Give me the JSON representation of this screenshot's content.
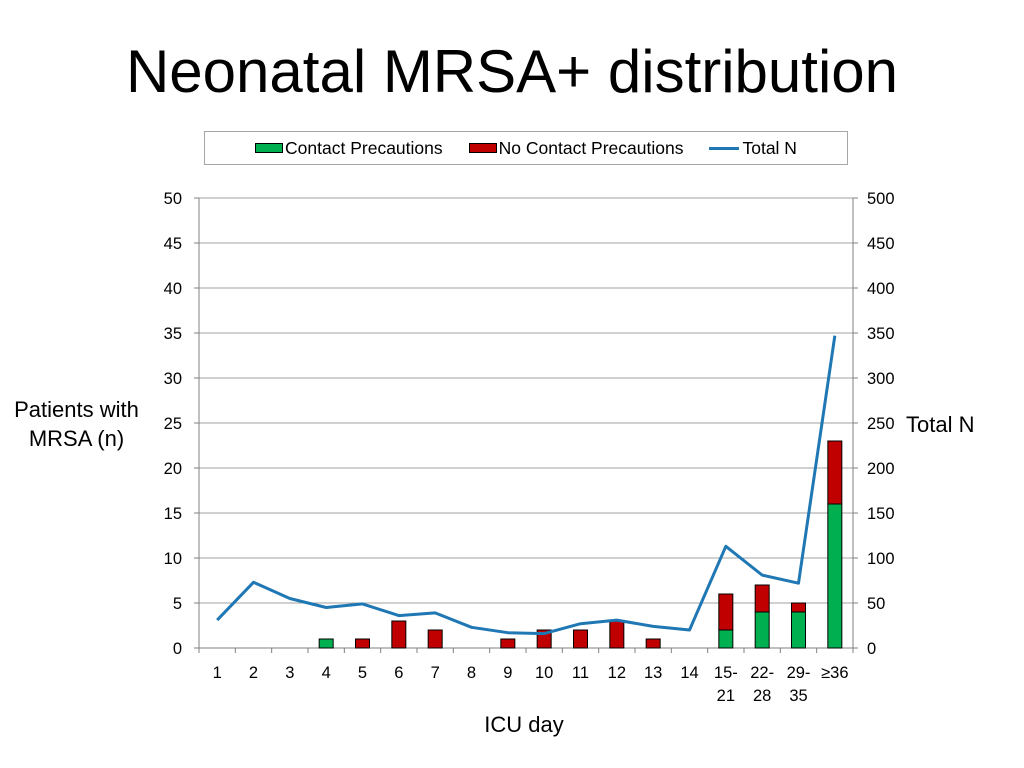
{
  "title": "Neonatal MRSA+ distribution",
  "colors": {
    "contact": "#00b050",
    "no_contact": "#c00000",
    "total": "#1f77b4"
  },
  "chart_data": {
    "type": "bar",
    "categories": [
      "1",
      "2",
      "3",
      "4",
      "5",
      "6",
      "7",
      "8",
      "9",
      "10",
      "11",
      "12",
      "13",
      "14",
      "15-21",
      "22-28",
      "29-35",
      "≥36"
    ],
    "series": [
      {
        "name": "Contact Precautions",
        "type": "bar",
        "stacked": true,
        "axis": "left",
        "values": [
          0,
          0,
          0,
          1,
          0,
          0,
          0,
          0,
          0,
          0,
          0,
          0,
          0,
          0,
          2,
          4,
          4,
          16
        ]
      },
      {
        "name": "No Contact Precautions",
        "type": "bar",
        "stacked": true,
        "axis": "left",
        "values": [
          0,
          0,
          0,
          0,
          1,
          3,
          2,
          0,
          1,
          2,
          2,
          3,
          1,
          0,
          4,
          3,
          1,
          7
        ]
      },
      {
        "name": "Total N",
        "type": "line",
        "axis": "right",
        "values": [
          31,
          73,
          55,
          45,
          49,
          36,
          39,
          23,
          17,
          16,
          27,
          31,
          24,
          20,
          113,
          81,
          72,
          347
        ]
      }
    ],
    "xlabel": "ICU day",
    "ylabel": "Patients with MRSA (n)",
    "ylabel_lines": [
      "Patients with",
      "MRSA (n)"
    ],
    "y2label": "Total N",
    "ylim": [
      0,
      50
    ],
    "y2lim": [
      0,
      500
    ],
    "yticks": [
      "0",
      "5",
      "10",
      "15",
      "20",
      "25",
      "30",
      "35",
      "40",
      "45",
      "50"
    ],
    "y2ticks": [
      "0",
      "50",
      "100",
      "150",
      "200",
      "250",
      "300",
      "350",
      "400",
      "450",
      "500"
    ],
    "xtick_labels": [
      [
        "1"
      ],
      [
        "2"
      ],
      [
        "3"
      ],
      [
        "4"
      ],
      [
        "5"
      ],
      [
        "6"
      ],
      [
        "7"
      ],
      [
        "8"
      ],
      [
        "9"
      ],
      [
        "10"
      ],
      [
        "11"
      ],
      [
        "12"
      ],
      [
        "13"
      ],
      [
        "14"
      ],
      [
        "15-",
        "21"
      ],
      [
        "22-",
        "28"
      ],
      [
        "29-",
        "35"
      ],
      [
        "≥36"
      ]
    ],
    "grid": true,
    "legend": "top"
  }
}
